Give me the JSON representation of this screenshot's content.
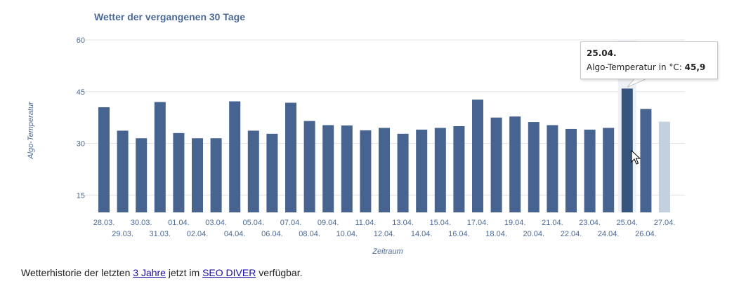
{
  "chart_data": {
    "type": "bar",
    "title": "Wetter der vergangenen 30 Tage",
    "xlabel": "Zeitraum",
    "ylabel": "Algo-Temperatur",
    "ylim": [
      10,
      60
    ],
    "yticks": [
      "15",
      "30",
      "45",
      "60"
    ],
    "grid": true,
    "categories": [
      "28.03.",
      "29.03.",
      "30.03.",
      "31.03.",
      "01.04.",
      "02.04.",
      "03.04.",
      "04.04.",
      "05.04.",
      "06.04.",
      "07.04.",
      "08.04.",
      "09.04.",
      "10.04.",
      "11.04.",
      "12.04.",
      "13.04.",
      "14.04.",
      "15.04.",
      "16.04.",
      "17.04.",
      "18.04.",
      "19.04.",
      "20.04.",
      "21.04.",
      "22.04.",
      "23.04.",
      "24.04.",
      "25.04.",
      "26.04.",
      "27.04."
    ],
    "values": [
      40.5,
      33.7,
      31.5,
      42.0,
      33.0,
      31.5,
      31.5,
      42.2,
      33.7,
      32.8,
      41.8,
      36.5,
      35.3,
      35.2,
      33.8,
      34.5,
      32.8,
      34.0,
      34.5,
      35.0,
      42.7,
      37.5,
      37.8,
      36.2,
      35.3,
      34.2,
      34.0,
      34.5,
      45.9,
      40.0,
      36.3
    ],
    "bar_color": "#46648f",
    "highlight_color": "#35557f",
    "faded_color": "#c3d0de",
    "highlighted_index": 28,
    "faded_index": 30
  },
  "tooltip": {
    "date": "25.04.",
    "label": "Algo-Temperatur in °C:",
    "value": "45,9"
  },
  "footer": {
    "text_before": "Wetterhistorie der letzten ",
    "link1": "3 Jahre",
    "text_middle": " jetzt im ",
    "link2": "SEO DIVER",
    "text_after": " verfügbar."
  }
}
